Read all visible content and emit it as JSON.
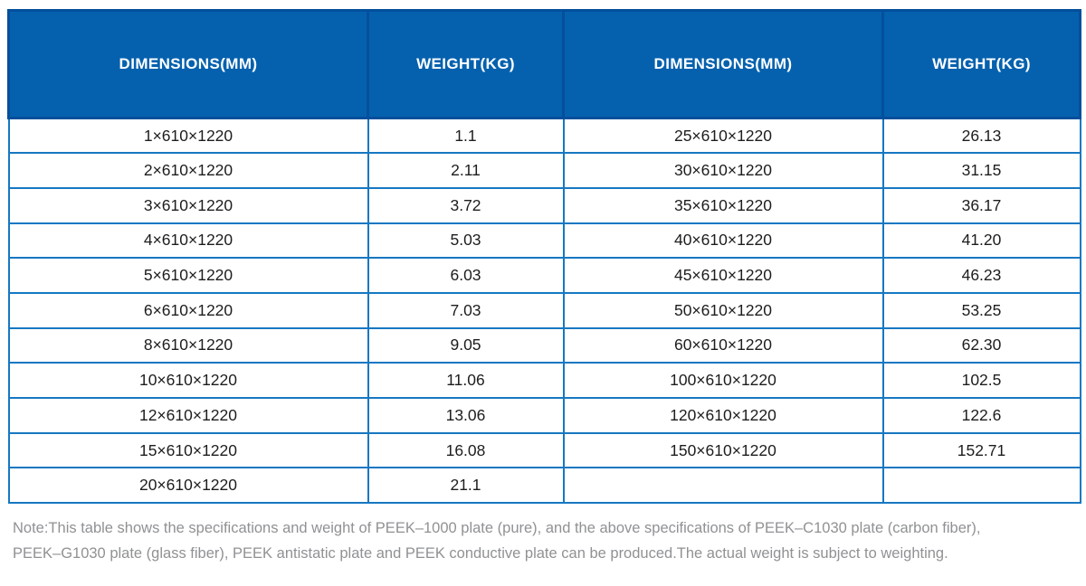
{
  "table": {
    "columns": [
      "DIMENSIONS(MM)",
      "WEIGHT(KG)",
      "DIMENSIONS(MM)",
      "WEIGHT(KG)"
    ],
    "rows": [
      [
        "1×610×1220",
        "1.1",
        "25×610×1220",
        "26.13"
      ],
      [
        "2×610×1220",
        "2.11",
        "30×610×1220",
        "31.15"
      ],
      [
        "3×610×1220",
        "3.72",
        "35×610×1220",
        "36.17"
      ],
      [
        "4×610×1220",
        "5.03",
        "40×610×1220",
        "41.20"
      ],
      [
        "5×610×1220",
        "6.03",
        "45×610×1220",
        "46.23"
      ],
      [
        "6×610×1220",
        "7.03",
        "50×610×1220",
        "53.25"
      ],
      [
        "8×610×1220",
        "9.05",
        "60×610×1220",
        "62.30"
      ],
      [
        "10×610×1220",
        "11.06",
        "100×610×1220",
        "102.5"
      ],
      [
        "12×610×1220",
        "13.06",
        "120×610×1220",
        "122.6"
      ],
      [
        "15×610×1220",
        "16.08",
        "150×610×1220",
        "152.71"
      ],
      [
        "20×610×1220",
        "21.1",
        "",
        ""
      ]
    ]
  },
  "note": {
    "line1": "Note:This table shows the specifications and weight of PEEK–1000 plate (pure), and the above specifications of PEEK–C1030 plate (carbon fiber),",
    "line2": "PEEK–G1030 plate (glass fiber), PEEK antistatic plate and PEEK conductive plate can be produced.The actual weight is subject to weighting."
  },
  "colors": {
    "header_bg": "#0561ae",
    "header_border": "#044f9c",
    "row_border": "#1678c2",
    "cell_text": "#1d1d1d",
    "note_text": "#8f9194"
  }
}
